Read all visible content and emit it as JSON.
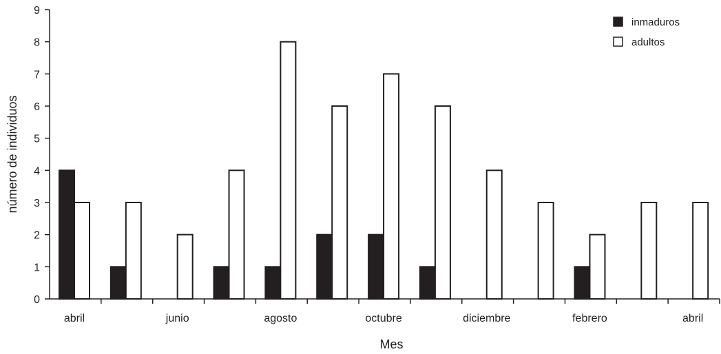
{
  "chart_data": {
    "type": "bar",
    "xlabel": "Mes",
    "ylabel": "número de individuos",
    "ylim": [
      0,
      9
    ],
    "yticks": [
      0,
      1,
      2,
      3,
      4,
      5,
      6,
      7,
      8,
      9
    ],
    "categories": [
      "abril",
      "",
      "junio",
      "",
      "agosto",
      "",
      "octubre",
      "",
      "diciembre",
      "",
      "febrero",
      "",
      "abril"
    ],
    "series": [
      {
        "name": "inmaduros",
        "color": "#231f20",
        "values": [
          4,
          1,
          0,
          1,
          1,
          2,
          2,
          1,
          0,
          0,
          1,
          0,
          0
        ]
      },
      {
        "name": "adultos",
        "color": "#ffffff",
        "values": [
          3,
          3,
          2,
          4,
          8,
          6,
          7,
          6,
          4,
          3,
          2,
          3,
          3
        ]
      }
    ],
    "legend": {
      "position": "top-right"
    },
    "grid": false
  }
}
